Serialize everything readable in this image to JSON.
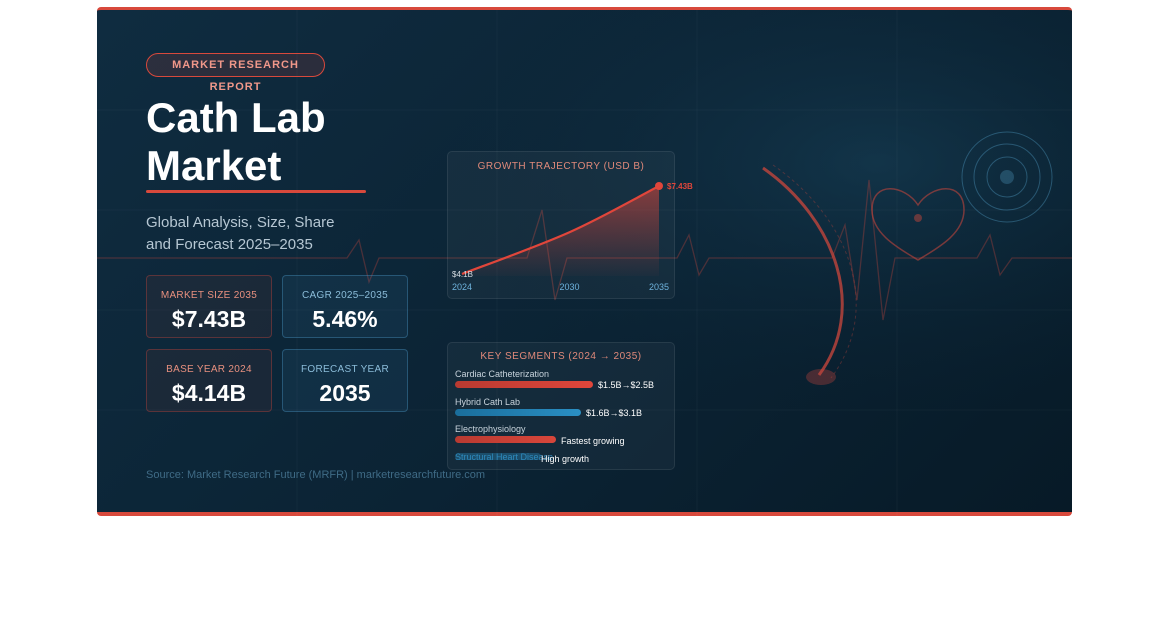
{
  "badge": "MARKET RESEARCH REPORT",
  "title": [
    "Cath Lab",
    "Market"
  ],
  "subtitle": [
    "Global Analysis, Size, Share",
    "and Forecast 2025–2035"
  ],
  "stats": [
    {
      "label": "MARKET SIZE 2035",
      "value": "$7.43B"
    },
    {
      "label": "CAGR 2025–2035",
      "value": "5.46%"
    },
    {
      "label": "BASE YEAR 2024",
      "value": "$4.14B"
    },
    {
      "label": "FORECAST YEAR",
      "value": "2035"
    }
  ],
  "source": "Source: Market Research Future (MRFR) | marketresearchfuture.com",
  "growth_chart": {
    "type": "line",
    "title": "GROWTH TRAJECTORY (USD B)",
    "x": [
      2024,
      2030,
      2035
    ],
    "values": [
      4.14,
      5.7,
      7.43
    ],
    "value_labels": [
      "$4.1B",
      null,
      "$7.43B"
    ],
    "color": "#e0463b"
  },
  "segments": {
    "title": "KEY SEGMENTS (2024 → 2035)",
    "rows": [
      {
        "name": "Cardiac Catheterization",
        "note": "$1.5B→$2.5B"
      },
      {
        "name": "Hybrid Cath Lab",
        "note": "$1.6B→$3.1B"
      },
      {
        "name": "Electrophysiology",
        "note": "Fastest growing"
      },
      {
        "name": "Structural Heart Disease",
        "note": "High growth"
      }
    ]
  }
}
